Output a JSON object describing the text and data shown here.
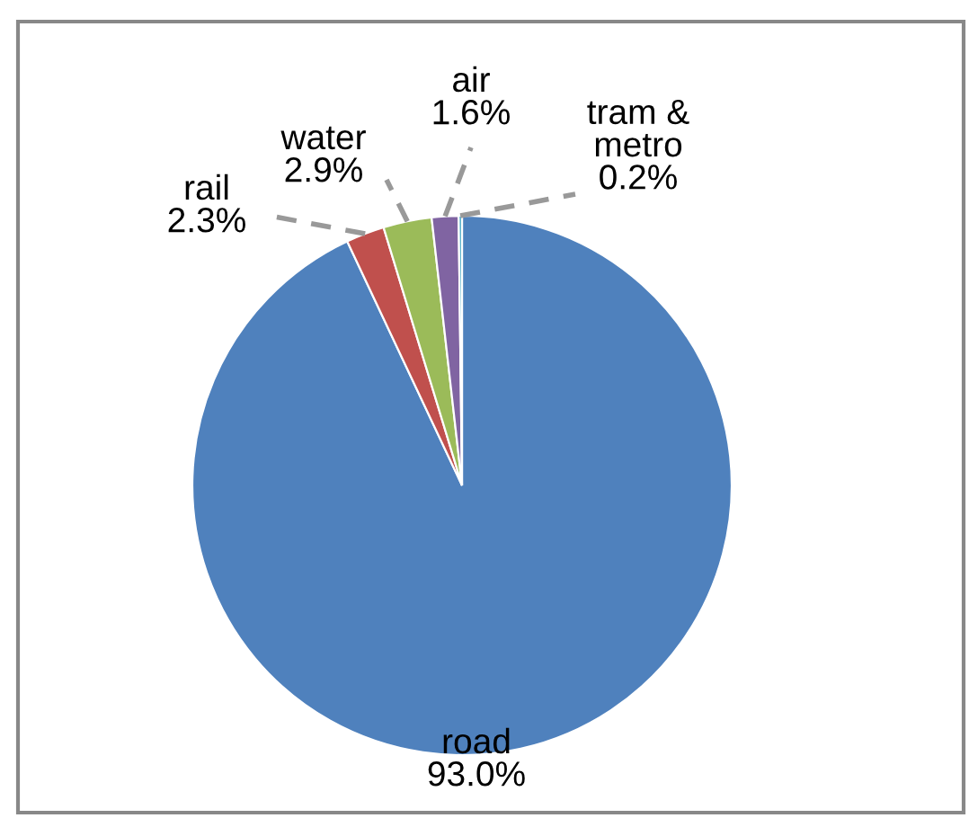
{
  "chart_data": {
    "type": "pie",
    "categories": [
      "road",
      "rail",
      "water",
      "air",
      "tram & metro"
    ],
    "values": [
      93.0,
      2.3,
      2.9,
      1.6,
      0.2
    ],
    "colors": [
      "#4f81bd",
      "#c0504d",
      "#9bbb59",
      "#8064a2",
      "#4bacc6"
    ],
    "value_labels": [
      "93.0%",
      "2.3%",
      "2.9%",
      "1.6%",
      "0.2%"
    ]
  }
}
